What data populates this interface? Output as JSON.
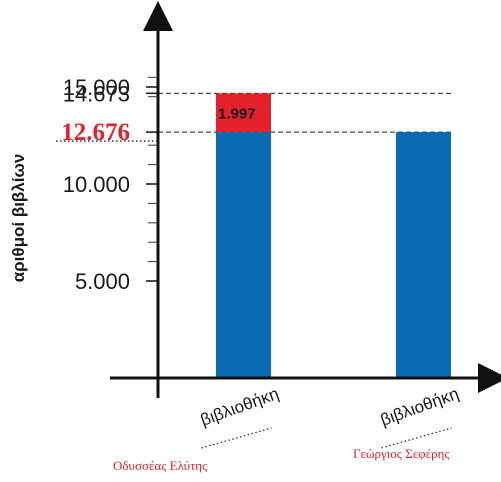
{
  "chart_data": {
    "type": "bar",
    "stacked": true,
    "ylabel": "αριθμοί βιβλίων",
    "ylim": [
      0,
      16000
    ],
    "yticks": [
      {
        "value": 5000,
        "label": "5.000"
      },
      {
        "value": 10000,
        "label": "10.000"
      },
      {
        "value": 12676,
        "label": "12.676",
        "highlight": true
      },
      {
        "value": 14673,
        "label": "14.673"
      },
      {
        "value": 15000,
        "label": "15.000"
      }
    ],
    "minor_tick_values": [
      15500,
      14500,
      12000,
      11000,
      9000,
      8000,
      7000,
      6000
    ],
    "categories": [
      {
        "label": "βιβλιοθήκη",
        "sublabel": "Οδυσσέας Ελύτης"
      },
      {
        "label": "βιβλιοθήκη",
        "sublabel": "Γεώργιος Σεφέρης"
      }
    ],
    "series": [
      {
        "values": [
          12676,
          12676
        ],
        "color": "#0a6ab3"
      },
      {
        "values": [
          1997,
          0
        ],
        "color": "#e3222b",
        "data_labels": [
          "1.997",
          ""
        ]
      }
    ],
    "reference_lines": [
      14673,
      12676
    ],
    "grid": false
  }
}
